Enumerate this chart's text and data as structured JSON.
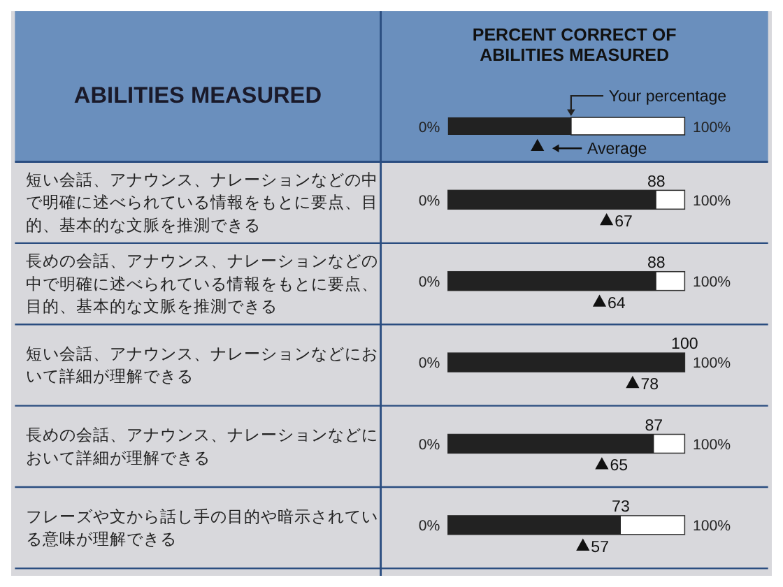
{
  "chart_data": {
    "type": "bar",
    "orientation": "horizontal",
    "title": "PERCENT CORRECT OF\nABILITIES MEASURED",
    "ylabel": "ABILITIES MEASURED",
    "categories": [
      "短い会話、アナウンス、ナレーションなどの中で明確に述べられている情報をもとに要点、目的、基本的な文脈を推測できる",
      "長めの会話、アナウンス、ナレーションなどの中で明確に述べられている情報をもとに要点、目的、基本的な文脈を推測できる",
      "短い会話、アナウンス、ナレーションなどにおいて詳細が理解できる",
      "長めの会話、アナウンス、ナレーションなどにおいて詳細が理解できる",
      "フレーズや文から話し手の目的や暗示されている意味が理解できる"
    ],
    "series": [
      {
        "name": "Your percentage",
        "type": "bar",
        "color": "#222222",
        "values": [
          88,
          88,
          100,
          87,
          73
        ]
      },
      {
        "name": "Average",
        "type": "scatter",
        "marker": "triangle",
        "color": "#111111",
        "values": [
          67,
          64,
          78,
          65,
          57
        ]
      }
    ],
    "xlim": [
      0,
      100
    ],
    "annotations": [
      "0%",
      "100%"
    ],
    "data_labels": true,
    "legend": "top"
  }
}
